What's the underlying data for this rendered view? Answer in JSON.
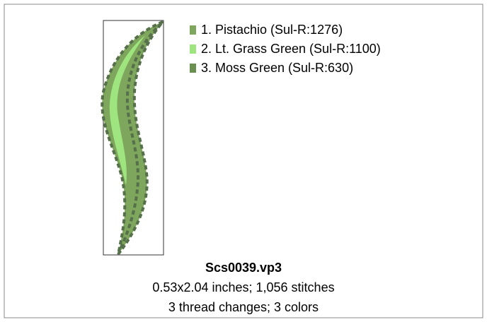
{
  "threads": [
    {
      "label": "1.  Pistachio (Sul-R:1276)",
      "color": "#7ea65c"
    },
    {
      "label": "2.  Lt. Grass Green (Sul-R:1100)",
      "color": "#9ee47f"
    },
    {
      "label": "3.  Moss Green (Sul-R:630)",
      "color": "#6a8f50"
    }
  ],
  "file": {
    "name": "Scs0039.vp3",
    "size_line": "0.53x2.04 inches; 1,056 stitches",
    "changes_line": "3 thread changes; 3 colors"
  }
}
